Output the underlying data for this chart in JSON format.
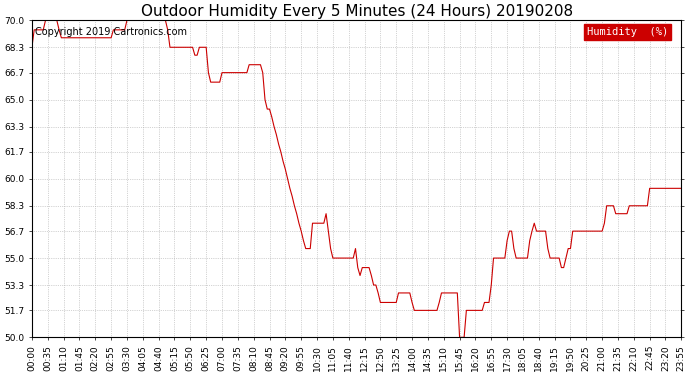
{
  "title": "Outdoor Humidity Every 5 Minutes (24 Hours) 20190208",
  "copyright_text": "Copyright 2019 Cartronics.com",
  "legend_label": "Humidity  (%)",
  "legend_bg": "#cc0000",
  "legend_text_color": "#ffffff",
  "line_color": "#cc0000",
  "background_color": "#ffffff",
  "grid_color": "#aaaaaa",
  "ylim": [
    50.0,
    70.0
  ],
  "yticks": [
    50.0,
    51.7,
    53.3,
    55.0,
    56.7,
    58.3,
    60.0,
    61.7,
    63.3,
    65.0,
    66.7,
    68.3,
    70.0
  ],
  "title_fontsize": 11,
  "tick_fontsize": 6.5,
  "copyright_fontsize": 7,
  "legend_fontsize": 7.5,
  "tick_every": 7,
  "humidity_data": [
    68.3,
    69.4,
    69.4,
    69.4,
    69.4,
    69.4,
    70.0,
    70.0,
    70.0,
    70.0,
    70.0,
    70.0,
    69.4,
    68.9,
    68.9,
    68.9,
    68.9,
    68.9,
    68.9,
    68.9,
    68.9,
    68.9,
    68.9,
    68.9,
    68.9,
    68.9,
    68.9,
    68.9,
    68.9,
    68.9,
    68.9,
    68.9,
    68.9,
    68.9,
    68.9,
    68.9,
    69.4,
    69.4,
    69.4,
    69.4,
    69.4,
    69.4,
    70.0,
    70.0,
    70.0,
    70.0,
    70.0,
    70.0,
    70.0,
    70.0,
    70.0,
    70.0,
    70.0,
    70.0,
    70.0,
    70.0,
    70.0,
    70.0,
    70.0,
    70.0,
    69.4,
    68.3,
    68.3,
    68.3,
    68.3,
    68.3,
    68.3,
    68.3,
    68.3,
    68.3,
    68.3,
    68.3,
    67.8,
    67.8,
    68.3,
    68.3,
    68.3,
    68.3,
    66.7,
    66.1,
    66.1,
    66.1,
    66.1,
    66.1,
    66.7,
    66.7,
    66.7,
    66.7,
    66.7,
    66.7,
    66.7,
    66.7,
    66.7,
    66.7,
    66.7,
    66.7,
    67.2,
    67.2,
    67.2,
    67.2,
    67.2,
    67.2,
    66.7,
    65.0,
    64.4,
    64.4,
    63.9,
    63.3,
    62.8,
    62.2,
    61.7,
    61.1,
    60.6,
    60.0,
    59.4,
    58.9,
    58.3,
    57.8,
    57.2,
    56.7,
    56.1,
    55.6,
    55.6,
    55.6,
    57.2,
    57.2,
    57.2,
    57.2,
    57.2,
    57.2,
    57.8,
    56.7,
    55.6,
    55.0,
    55.0,
    55.0,
    55.0,
    55.0,
    55.0,
    55.0,
    55.0,
    55.0,
    55.0,
    55.6,
    54.4,
    53.9,
    54.4,
    54.4,
    54.4,
    54.4,
    53.9,
    53.3,
    53.3,
    52.8,
    52.2,
    52.2,
    52.2,
    52.2,
    52.2,
    52.2,
    52.2,
    52.2,
    52.8,
    52.8,
    52.8,
    52.8,
    52.8,
    52.8,
    52.2,
    51.7,
    51.7,
    51.7,
    51.7,
    51.7,
    51.7,
    51.7,
    51.7,
    51.7,
    51.7,
    51.7,
    52.2,
    52.8,
    52.8,
    52.8,
    52.8,
    52.8,
    52.8,
    52.8,
    52.8,
    50.0,
    50.0,
    50.0,
    51.7,
    51.7,
    51.7,
    51.7,
    51.7,
    51.7,
    51.7,
    51.7,
    52.2,
    52.2,
    52.2,
    53.3,
    55.0,
    55.0,
    55.0,
    55.0,
    55.0,
    55.0,
    56.1,
    56.7,
    56.7,
    55.6,
    55.0,
    55.0,
    55.0,
    55.0,
    55.0,
    55.0,
    56.1,
    56.7,
    57.2,
    56.7,
    56.7,
    56.7,
    56.7,
    56.7,
    55.6,
    55.0,
    55.0,
    55.0,
    55.0,
    55.0,
    54.4,
    54.4,
    55.0,
    55.6,
    55.6,
    56.7,
    56.7,
    56.7,
    56.7,
    56.7,
    56.7,
    56.7,
    56.7,
    56.7,
    56.7,
    56.7,
    56.7,
    56.7,
    56.7,
    57.2,
    58.3,
    58.3,
    58.3,
    58.3,
    57.8,
    57.8,
    57.8,
    57.8,
    57.8,
    57.8,
    58.3,
    58.3,
    58.3,
    58.3,
    58.3,
    58.3,
    58.3,
    58.3,
    58.3,
    59.4,
    59.4,
    59.4,
    59.4,
    59.4,
    59.4,
    59.4,
    59.4,
    59.4,
    59.4,
    59.4,
    59.4,
    59.4,
    59.4,
    59.4
  ]
}
